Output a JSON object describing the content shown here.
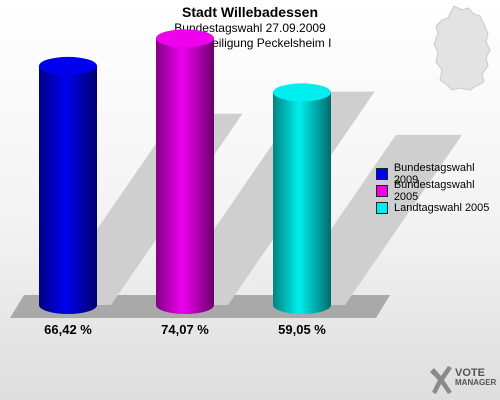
{
  "header": {
    "title": "Stadt Willebadessen",
    "subtitle1": "Bundestagswahl 27.09.2009",
    "subtitle2": "Wahlbeteiligung Peckelsheim I"
  },
  "chart_data": {
    "type": "bar",
    "categories": [
      "Bundestagswahl 2009",
      "Bundestagswahl 2005",
      "Landtagswahl 2005"
    ],
    "values": [
      66.42,
      74.07,
      59.05
    ],
    "value_labels": [
      "66,42 %",
      "74,07 %",
      "59,05 %"
    ],
    "colors": [
      "#0000ee",
      "#ee00ee",
      "#00eeee"
    ],
    "legend": [
      "Bundestagswahl 2009",
      "Bundestagswahl 2005",
      "Landtagswahl 2005"
    ],
    "legend_position": "right",
    "ylim": [
      0,
      100
    ],
    "grid": false
  },
  "logo": {
    "line1": "VOTE",
    "line2": "MANAGER"
  }
}
